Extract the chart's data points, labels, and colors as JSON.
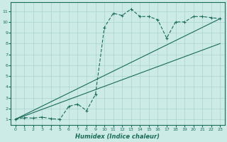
{
  "xlabel": "Humidex (Indice chaleur)",
  "bg_color": "#cceae6",
  "grid_color": "#aad4cf",
  "line_color": "#1a6b5a",
  "xlim": [
    -0.5,
    23.5
  ],
  "ylim": [
    0.5,
    11.8
  ],
  "xticks": [
    0,
    1,
    2,
    3,
    4,
    5,
    6,
    7,
    8,
    9,
    10,
    11,
    12,
    13,
    14,
    15,
    16,
    17,
    18,
    19,
    20,
    21,
    22,
    23
  ],
  "yticks": [
    1,
    2,
    3,
    4,
    5,
    6,
    7,
    8,
    9,
    10,
    11
  ],
  "curve_x": [
    0,
    1,
    2,
    3,
    4,
    5,
    6,
    7,
    8,
    9,
    10,
    11,
    12,
    13,
    14,
    15,
    16,
    17,
    18,
    19,
    20,
    21,
    22,
    23
  ],
  "curve_y": [
    1.0,
    1.15,
    1.1,
    1.2,
    1.05,
    1.0,
    2.2,
    2.4,
    1.8,
    3.3,
    9.5,
    10.8,
    10.6,
    11.2,
    10.5,
    10.5,
    10.2,
    8.5,
    10.0,
    10.0,
    10.5,
    10.5,
    10.4,
    10.3
  ],
  "ref_line1_x": [
    0,
    23
  ],
  "ref_line1_y": [
    1.0,
    10.3
  ],
  "ref_line2_x": [
    0,
    23
  ],
  "ref_line2_y": [
    1.0,
    8.0
  ]
}
